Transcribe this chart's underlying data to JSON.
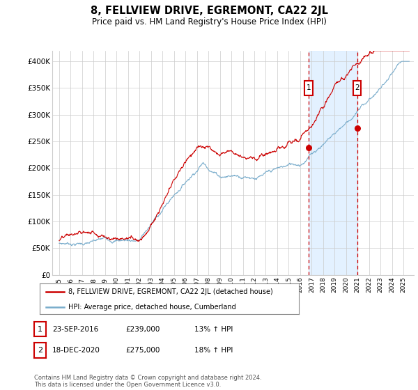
{
  "title": "8, FELLVIEW DRIVE, EGREMONT, CA22 2JL",
  "subtitle": "Price paid vs. HM Land Registry's House Price Index (HPI)",
  "legend_line1": "8, FELLVIEW DRIVE, EGREMONT, CA22 2JL (detached house)",
  "legend_line2": "HPI: Average price, detached house, Cumberland",
  "annotation1_date": "23-SEP-2016",
  "annotation1_price": "£239,000",
  "annotation1_hpi": "13% ↑ HPI",
  "annotation2_date": "18-DEC-2020",
  "annotation2_price": "£275,000",
  "annotation2_hpi": "18% ↑ HPI",
  "footer": "Contains HM Land Registry data © Crown copyright and database right 2024.\nThis data is licensed under the Open Government Licence v3.0.",
  "red_color": "#cc0000",
  "blue_color": "#7aadcc",
  "annotation_box_color": "#cc0000",
  "vline_color": "#cc0000",
  "shaded_color": "#ddeeff",
  "grid_color": "#cccccc",
  "bg_color": "#ffffff",
  "ylim": [
    0,
    420000
  ],
  "yticks": [
    0,
    50000,
    100000,
    150000,
    200000,
    250000,
    300000,
    350000,
    400000
  ],
  "ytick_labels": [
    "£0",
    "£50K",
    "£100K",
    "£150K",
    "£200K",
    "£250K",
    "£300K",
    "£350K",
    "£400K"
  ],
  "sale1_year": 2016.73,
  "sale2_year": 2020.96,
  "sale1_price": 239000,
  "sale2_price": 275000
}
